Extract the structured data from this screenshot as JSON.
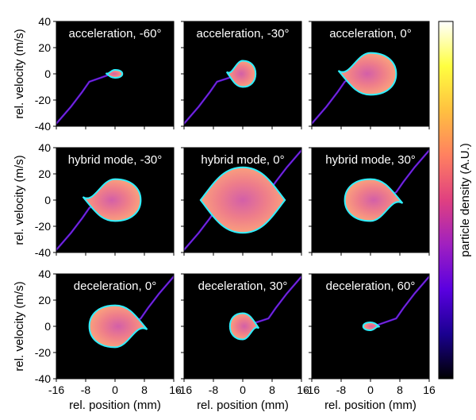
{
  "chart_data": {
    "type": "heatmap",
    "layout": {
      "rows": 3,
      "cols": 3
    },
    "xlabel": "rel. position (mm)",
    "ylabel": "rel. velocity (m/s)",
    "xlim": [
      -16,
      16
    ],
    "ylim": [
      -40,
      40
    ],
    "xticks": [
      -16,
      -8,
      0,
      8,
      16
    ],
    "yticks": [
      -40,
      -20,
      0,
      20,
      40
    ],
    "colorbar": {
      "label": "particle density (A.U.)",
      "colors": [
        "#000000",
        "#1a0090",
        "#5a00e0",
        "#a020c0",
        "#e04080",
        "#ff8060",
        "#ffc040",
        "#ffff40",
        "#ffffff"
      ]
    },
    "outline_color": "#2ff0ff",
    "panels": [
      {
        "label": "acceleration, -60°",
        "bucket_height": 3,
        "bucket_width": 2,
        "tail": "lower-left"
      },
      {
        "label": "acceleration, -30°",
        "bucket_height": 10,
        "bucket_width": 3.5,
        "tail": "lower-left"
      },
      {
        "label": "acceleration, 0°",
        "bucket_height": 16,
        "bucket_width": 7,
        "tail": "lower-left"
      },
      {
        "label": "hybrid mode, -30°",
        "bucket_height": 16,
        "bucket_width": 7,
        "tail": "lower-left"
      },
      {
        "label": "hybrid mode, 0°",
        "bucket_height": 25,
        "bucket_width": 10,
        "tail": "both"
      },
      {
        "label": "hybrid mode, 30°",
        "bucket_height": 16,
        "bucket_width": 7,
        "tail": "upper-right"
      },
      {
        "label": "deceleration, 0°",
        "bucket_height": 16,
        "bucket_width": 7,
        "tail": "upper-right"
      },
      {
        "label": "deceleration, 30°",
        "bucket_height": 10,
        "bucket_width": 3.5,
        "tail": "upper-right"
      },
      {
        "label": "deceleration, 60°",
        "bucket_height": 3,
        "bucket_width": 2,
        "tail": "upper-right"
      }
    ]
  }
}
